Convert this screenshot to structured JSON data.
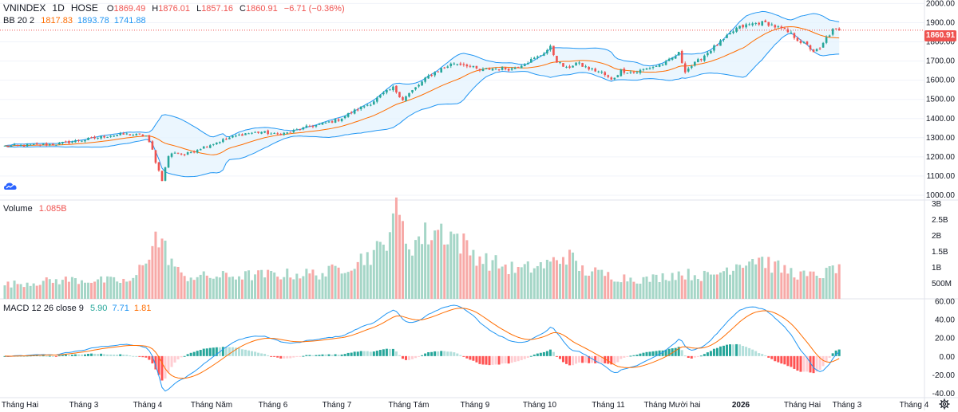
{
  "header": {
    "symbol": "VNINDEX",
    "interval": "1D",
    "exchange": "HOSE",
    "open_label": "O",
    "open": "1869.49",
    "high_label": "H",
    "high": "1876.01",
    "low_label": "L",
    "low": "1857.16",
    "close_label": "C",
    "close": "1860.91",
    "change": "−6.71 (−0.36%)"
  },
  "bb_legend": {
    "name": "BB 20 2",
    "basis": "1817.83",
    "upper": "1893.78",
    "lower": "1741.88"
  },
  "volume_legend": {
    "name": "Volume",
    "value": "1.085B"
  },
  "macd_legend": {
    "name": "MACD 12 26 close 9",
    "hist": "5.90",
    "macd": "7.71",
    "signal": "1.81"
  },
  "last_price_tag": "1860.91",
  "colors": {
    "up": "#26a69a",
    "down": "#ef5350",
    "up_vol": "#a5d6c7",
    "down_vol": "#f7a9a7",
    "bb_band": "#2196f3",
    "bb_basis": "#ff6d00",
    "bb_fill": "#e3f2fd",
    "macd_line": "#2196f3",
    "signal_line": "#ff6d00",
    "hist_up_strong": "#26a69a",
    "hist_up_weak": "#b2dfdb",
    "hist_down_strong": "#ff5252",
    "hist_down_weak": "#ffcdd2",
    "grid": "#f0f3fa"
  },
  "chart_data": [
    {
      "type": "candlestick",
      "title": "VNINDEX 1D HOSE",
      "ylim": [
        975,
        2010
      ],
      "y_ticks": [
        "2000.00",
        "1900.00",
        "1800.00",
        "1700.00",
        "1600.00",
        "1500.00",
        "1400.00",
        "1300.00",
        "1200.00",
        "1100.00",
        "1000.00"
      ],
      "x_ticks": [
        "Tháng Hai",
        "Tháng 3",
        "Tháng 4",
        "Tháng Năm",
        "Tháng 6",
        "Tháng 7",
        "Tháng Tám",
        "Tháng 9",
        "Tháng 10",
        "Tháng 11",
        "Tháng Mười hai",
        "2026",
        "Tháng Hai",
        "Tháng 3",
        "Tháng 4"
      ],
      "close_anchors": [
        [
          0,
          1256
        ],
        [
          15,
          1265
        ],
        [
          25,
          1290
        ],
        [
          33,
          1312
        ],
        [
          38,
          1318
        ],
        [
          44,
          1310
        ],
        [
          46,
          1235
        ],
        [
          47,
          1175
        ],
        [
          49,
          1080
        ],
        [
          51,
          1205
        ],
        [
          53,
          1225
        ],
        [
          56,
          1210
        ],
        [
          60,
          1240
        ],
        [
          65,
          1270
        ],
        [
          70,
          1300
        ],
        [
          75,
          1322
        ],
        [
          80,
          1330
        ],
        [
          84,
          1318
        ],
        [
          88,
          1325
        ],
        [
          94,
          1355
        ],
        [
          98,
          1368
        ],
        [
          104,
          1395
        ],
        [
          110,
          1450
        ],
        [
          114,
          1480
        ],
        [
          118,
          1530
        ],
        [
          121,
          1560
        ],
        [
          124,
          1500
        ],
        [
          128,
          1560
        ],
        [
          132,
          1620
        ],
        [
          136,
          1660
        ],
        [
          140,
          1690
        ],
        [
          144,
          1680
        ],
        [
          148,
          1650
        ],
        [
          152,
          1660
        ],
        [
          158,
          1660
        ],
        [
          162,
          1690
        ],
        [
          166,
          1720
        ],
        [
          170,
          1770
        ],
        [
          172,
          1700
        ],
        [
          175,
          1660
        ],
        [
          178,
          1690
        ],
        [
          182,
          1660
        ],
        [
          186,
          1640
        ],
        [
          189,
          1600
        ],
        [
          192,
          1650
        ],
        [
          196,
          1640
        ],
        [
          200,
          1660
        ],
        [
          206,
          1690
        ],
        [
          210,
          1740
        ],
        [
          212,
          1650
        ],
        [
          216,
          1700
        ],
        [
          220,
          1760
        ],
        [
          224,
          1810
        ],
        [
          228,
          1870
        ],
        [
          232,
          1890
        ],
        [
          235,
          1900
        ],
        [
          238,
          1895
        ],
        [
          240,
          1880
        ],
        [
          243,
          1860
        ],
        [
          245,
          1840
        ],
        [
          248,
          1800
        ],
        [
          250,
          1780
        ],
        [
          252,
          1750
        ],
        [
          254,
          1760
        ],
        [
          256,
          1820
        ],
        [
          258,
          1860
        ],
        [
          260,
          1861
        ]
      ]
    },
    {
      "type": "bar",
      "title": "Volume",
      "ylim": [
        0,
        3000000000
      ],
      "y_ticks": [
        "3B",
        "2.5B",
        "2B",
        "1.5B",
        "1B",
        "500M"
      ],
      "volume_anchors": [
        [
          0,
          0.45
        ],
        [
          20,
          0.6
        ],
        [
          40,
          0.55
        ],
        [
          47,
          1.9
        ],
        [
          49,
          1.7
        ],
        [
          55,
          0.7
        ],
        [
          65,
          0.7
        ],
        [
          80,
          0.75
        ],
        [
          100,
          0.8
        ],
        [
          110,
          1.2
        ],
        [
          118,
          1.6
        ],
        [
          121,
          2.8
        ],
        [
          123,
          2.4
        ],
        [
          126,
          1.7
        ],
        [
          135,
          2.2
        ],
        [
          140,
          2.0
        ],
        [
          145,
          1.5
        ],
        [
          150,
          1.2
        ],
        [
          160,
          0.9
        ],
        [
          170,
          1.1
        ],
        [
          175,
          1.4
        ],
        [
          180,
          0.9
        ],
        [
          190,
          0.7
        ],
        [
          200,
          0.6
        ],
        [
          210,
          0.8
        ],
        [
          220,
          0.7
        ],
        [
          230,
          1.2
        ],
        [
          235,
          1.3
        ],
        [
          240,
          1.0
        ],
        [
          250,
          0.7
        ],
        [
          256,
          0.8
        ],
        [
          260,
          1.085
        ]
      ]
    },
    {
      "type": "line",
      "title": "MACD 12 26 close 9",
      "ylim": [
        -45,
        62
      ],
      "y_ticks": [
        "60.00",
        "40.00",
        "20.00",
        "0.00",
        "-20.00",
        "-40.00"
      ],
      "series": [
        {
          "name": "MACD",
          "computed_from": "close_anchors"
        },
        {
          "name": "Signal",
          "computed_from": "close_anchors"
        },
        {
          "name": "Histogram",
          "computed_from": "close_anchors"
        }
      ]
    }
  ]
}
